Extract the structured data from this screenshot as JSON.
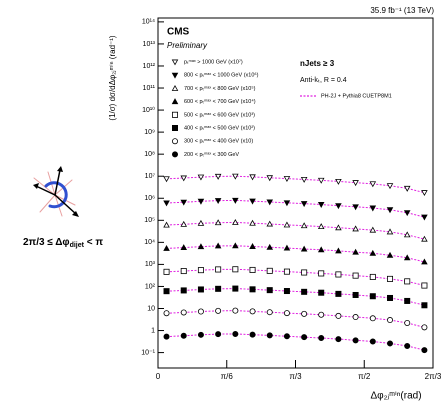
{
  "chart_data": {
    "type": "scatter",
    "top_label": "35.9 fb⁻¹ (13 TeV)",
    "experiment": "CMS",
    "status": "Preliminary",
    "selection": "nJets ≥ 3",
    "algorithm": "Anti-kₜ, R = 0.4",
    "model_label": "PH-2J + Pythia8 CUETP8M1",
    "model_color": "#e020e0",
    "region_label": {
      "prefix": "2π/3 ≤ Δφ",
      "subscript": "dijet",
      "suffix": " < π"
    },
    "y_label": "(1/σ) dσ/dΔφ₂ⱼᵐⁱⁿ (rad⁻¹)",
    "x_label": "Δφ₂ⱼᵐⁱⁿ(rad)",
    "log_y": true,
    "xlim": [
      0,
      2.0944
    ],
    "ylim": [
      0.02,
      150000000000000.0
    ],
    "xticks": [
      0,
      {
        "value": 0.5236,
        "label": "π/6"
      },
      {
        "value": 1.0472,
        "label": "π/3"
      },
      {
        "value": 1.5708,
        "label": "π/2"
      },
      {
        "value": 2.0944,
        "label": "2π/3"
      }
    ],
    "yticks": [
      {
        "value": 100000000000000.0,
        "label": "10¹⁴"
      },
      {
        "value": 10000000000000.0,
        "label": "10¹³"
      },
      {
        "value": 1000000000000.0,
        "label": "10¹²"
      },
      {
        "value": 100000000000.0,
        "label": "10¹¹"
      },
      {
        "value": 10000000000.0,
        "label": "10¹⁰"
      },
      {
        "value": 1000000000.0,
        "label": "10⁹"
      },
      {
        "value": 100000000.0,
        "label": "10⁸"
      },
      {
        "value": 10000000.0,
        "label": "10⁷"
      },
      {
        "value": 1000000.0,
        "label": "10⁶"
      },
      {
        "value": 100000.0,
        "label": "10⁵"
      },
      {
        "value": 10000.0,
        "label": "10⁴"
      },
      {
        "value": 1000.0,
        "label": "10³"
      },
      {
        "value": 100,
        "label": "10²"
      },
      10,
      1,
      {
        "value": 0.1,
        "label": "10⁻¹"
      }
    ],
    "x": [
      0.065,
      0.196,
      0.327,
      0.458,
      0.589,
      0.72,
      0.851,
      0.982,
      1.113,
      1.243,
      1.374,
      1.505,
      1.636,
      1.767,
      1.898,
      2.029
    ],
    "series": [
      {
        "name": "pₜᵐᵃˣ > 1000 GeV (x10⁷)",
        "marker": "triangle-down-open",
        "color": "#000000",
        "values": [
          7600000.0,
          8300000.0,
          9100000.0,
          9800000.0,
          10000000.0,
          9300000.0,
          8500000.0,
          7800000.0,
          7100000.0,
          6500000.0,
          5800000.0,
          5100000.0,
          4500000.0,
          3700000.0,
          2800000.0,
          1800000.0
        ]
      },
      {
        "name": "800 < pₜᵐᵃˣ < 1000 GeV (x10⁶)",
        "marker": "triangle-down",
        "color": "#000000",
        "values": [
          610000.0,
          660000.0,
          730000.0,
          780000.0,
          800000.0,
          740000.0,
          680000.0,
          620000.0,
          570000.0,
          520000.0,
          460000.0,
          410000.0,
          360000.0,
          300000.0,
          220000.0,
          140000.0
        ]
      },
      {
        "name": "700 < pₜᵐᵃˣ < 800 GeV (x10⁵)",
        "marker": "triangle-up-open",
        "color": "#000000",
        "values": [
          61000.0,
          66000.0,
          73000.0,
          78000.0,
          80000.0,
          74000.0,
          68000.0,
          62000.0,
          57000.0,
          52000.0,
          46000.0,
          41000.0,
          36000.0,
          30000.0,
          22000.0,
          14000.0
        ]
      },
      {
        "name": "600 < pₜᵐᵃˣ < 700 GeV (x10⁴)",
        "marker": "triangle-up",
        "color": "#000000",
        "values": [
          5300,
          5800,
          6400,
          6900,
          7000,
          6500,
          6000,
          5500,
          5000,
          4600,
          4100,
          3600,
          3200,
          2600,
          2000,
          1300
        ]
      },
      {
        "name": "500 < pₜᵐᵃˣ < 600 GeV (x10³)",
        "marker": "square-open",
        "color": "#000000",
        "values": [
          460,
          500,
          550,
          590,
          600,
          560,
          510,
          470,
          430,
          390,
          350,
          310,
          270,
          220,
          170,
          110
        ]
      },
      {
        "name": "400 < pₜᵐᵃˣ < 500 GeV (x10²)",
        "marker": "square",
        "color": "#000000",
        "values": [
          61,
          66,
          73,
          78,
          80,
          74,
          68,
          62,
          57,
          52,
          46,
          41,
          36,
          30,
          22,
          14
        ]
      },
      {
        "name": "300 < pₜᵐᵃˣ < 400 GeV (x10)",
        "marker": "circle-open",
        "color": "#000000",
        "values": [
          6.1,
          6.6,
          7.3,
          7.8,
          8,
          7.4,
          6.8,
          6.2,
          5.7,
          5.2,
          4.6,
          4.1,
          3.6,
          3.0,
          2.2,
          1.4
        ]
      },
      {
        "name": "200 < pₜᵐᵃˣ < 300 GeV",
        "marker": "circle",
        "color": "#000000",
        "values": [
          0.53,
          0.58,
          0.64,
          0.69,
          0.7,
          0.65,
          0.6,
          0.55,
          0.5,
          0.46,
          0.41,
          0.36,
          0.32,
          0.26,
          0.2,
          0.13
        ]
      }
    ]
  }
}
